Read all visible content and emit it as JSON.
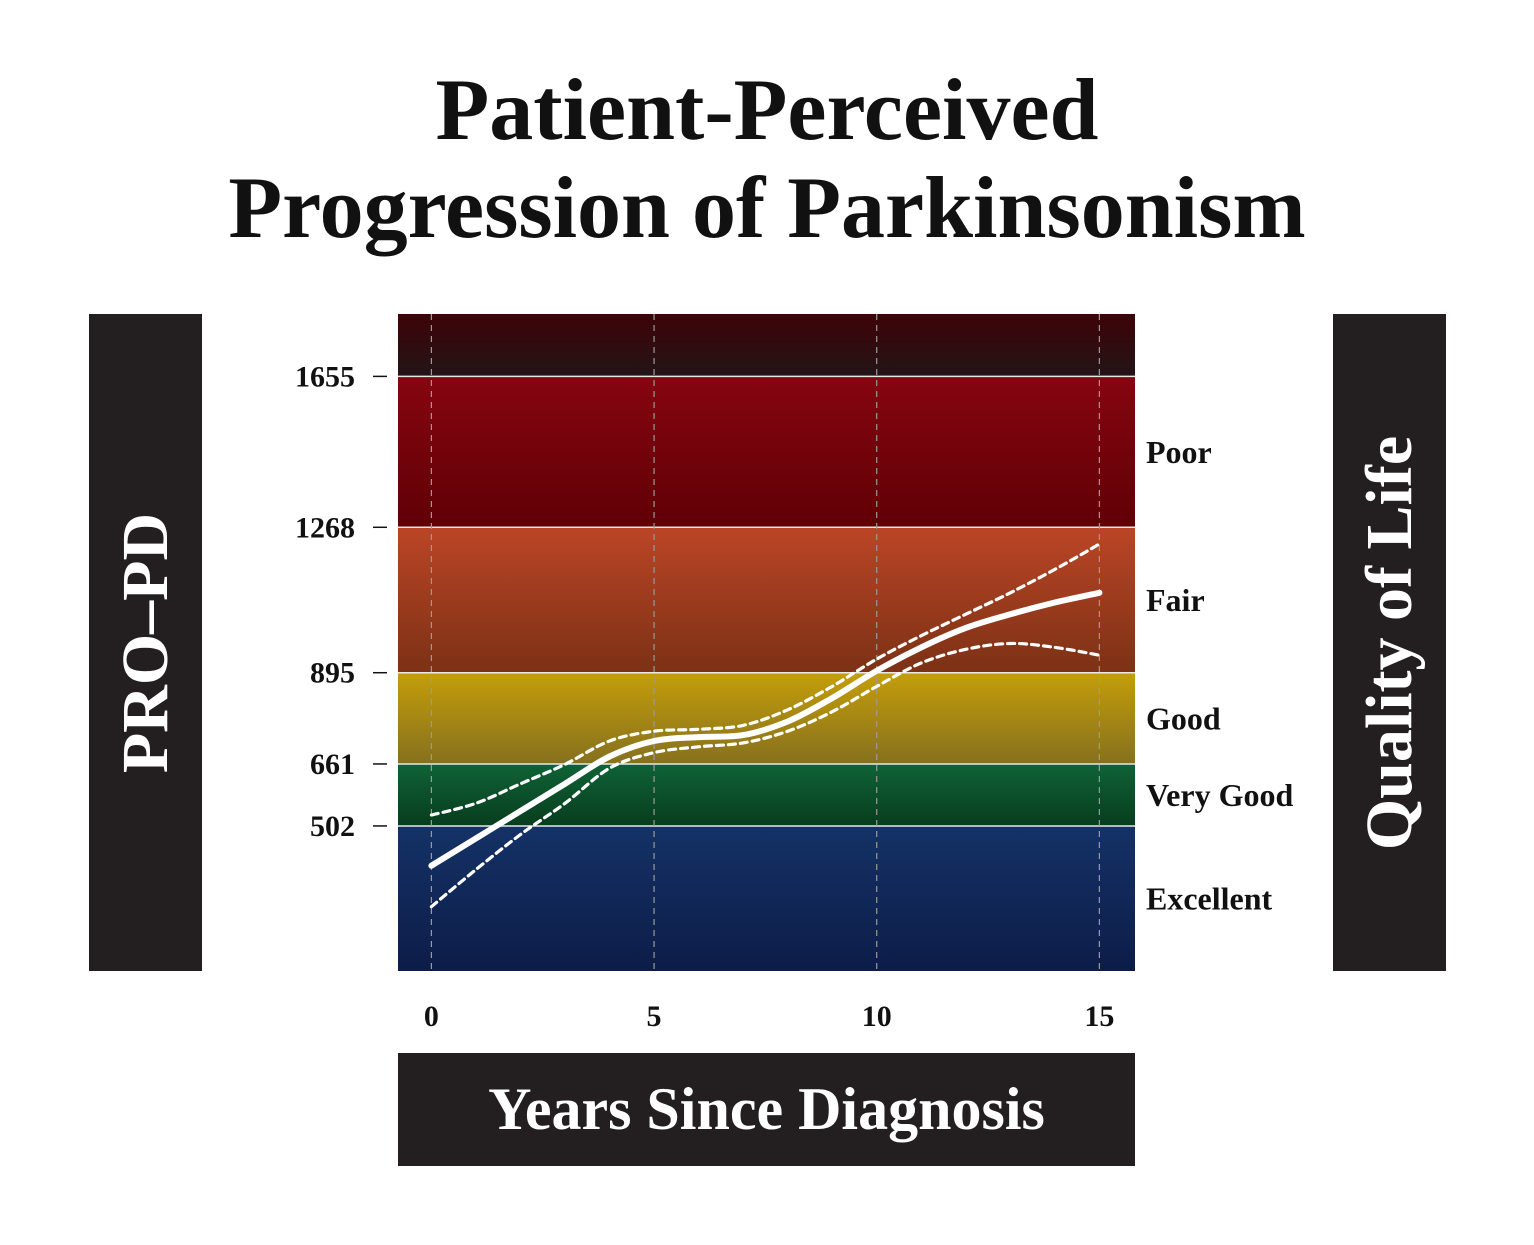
{
  "chart_data": {
    "type": "line",
    "title": [
      "Patient-Perceived",
      "Progression of Parkinsonism"
    ],
    "xlabel": "Years Since Diagnosis",
    "ylabel": "PRO–PD",
    "right_label": "Quality of Life",
    "xlim": [
      -0.75,
      15.8
    ],
    "ylim": [
      130,
      1815
    ],
    "x_ticks": [
      0,
      5,
      10,
      15
    ],
    "y_ticks": [
      502,
      661,
      895,
      1268,
      1655
    ],
    "grid": {
      "x": true,
      "style": "dashed"
    },
    "bands": [
      {
        "label": "Excellent",
        "from": 130,
        "to": 502,
        "color_top": "#143266",
        "color_bottom": "#0d1c48"
      },
      {
        "label": "Very Good",
        "from": 502,
        "to": 661,
        "color_top": "#0f6236",
        "color_bottom": "#083d1e"
      },
      {
        "label": "Good",
        "from": 661,
        "to": 895,
        "color_top": "#c49e0a",
        "color_bottom": "#86701e"
      },
      {
        "label": "Fair",
        "from": 895,
        "to": 1268,
        "color_top": "#bb4526",
        "color_bottom": "#7c3115"
      },
      {
        "label": "Poor",
        "from": 1268,
        "to": 1655,
        "color_top": "#860510",
        "color_bottom": "#5f0005"
      },
      {
        "label": "",
        "from": 1655,
        "to": 1815,
        "color_top": "#3e0308",
        "color_bottom": "#231416"
      }
    ],
    "series": [
      {
        "role": "mean",
        "style": "solid",
        "x": [
          0,
          1,
          2,
          3,
          4,
          5,
          6,
          7,
          8,
          9,
          10,
          11,
          12,
          13,
          14,
          15
        ],
        "y": [
          400,
          470,
          540,
          610,
          680,
          720,
          730,
          735,
          770,
          830,
          900,
          960,
          1010,
          1045,
          1075,
          1100
        ]
      },
      {
        "role": "upper",
        "style": "dashed",
        "x": [
          0,
          1,
          2,
          3,
          4,
          5,
          6,
          7,
          8,
          9,
          10,
          11,
          12,
          13,
          14,
          15
        ],
        "y": [
          530,
          560,
          610,
          660,
          720,
          745,
          750,
          760,
          800,
          860,
          930,
          990,
          1045,
          1100,
          1160,
          1225
        ]
      },
      {
        "role": "lower",
        "style": "dashed",
        "x": [
          0,
          1,
          2,
          3,
          4,
          5,
          6,
          7,
          8,
          9,
          10,
          11,
          12,
          13,
          14,
          15
        ],
        "y": [
          295,
          390,
          480,
          560,
          650,
          690,
          705,
          715,
          745,
          795,
          860,
          920,
          955,
          970,
          960,
          940
        ]
      }
    ]
  }
}
